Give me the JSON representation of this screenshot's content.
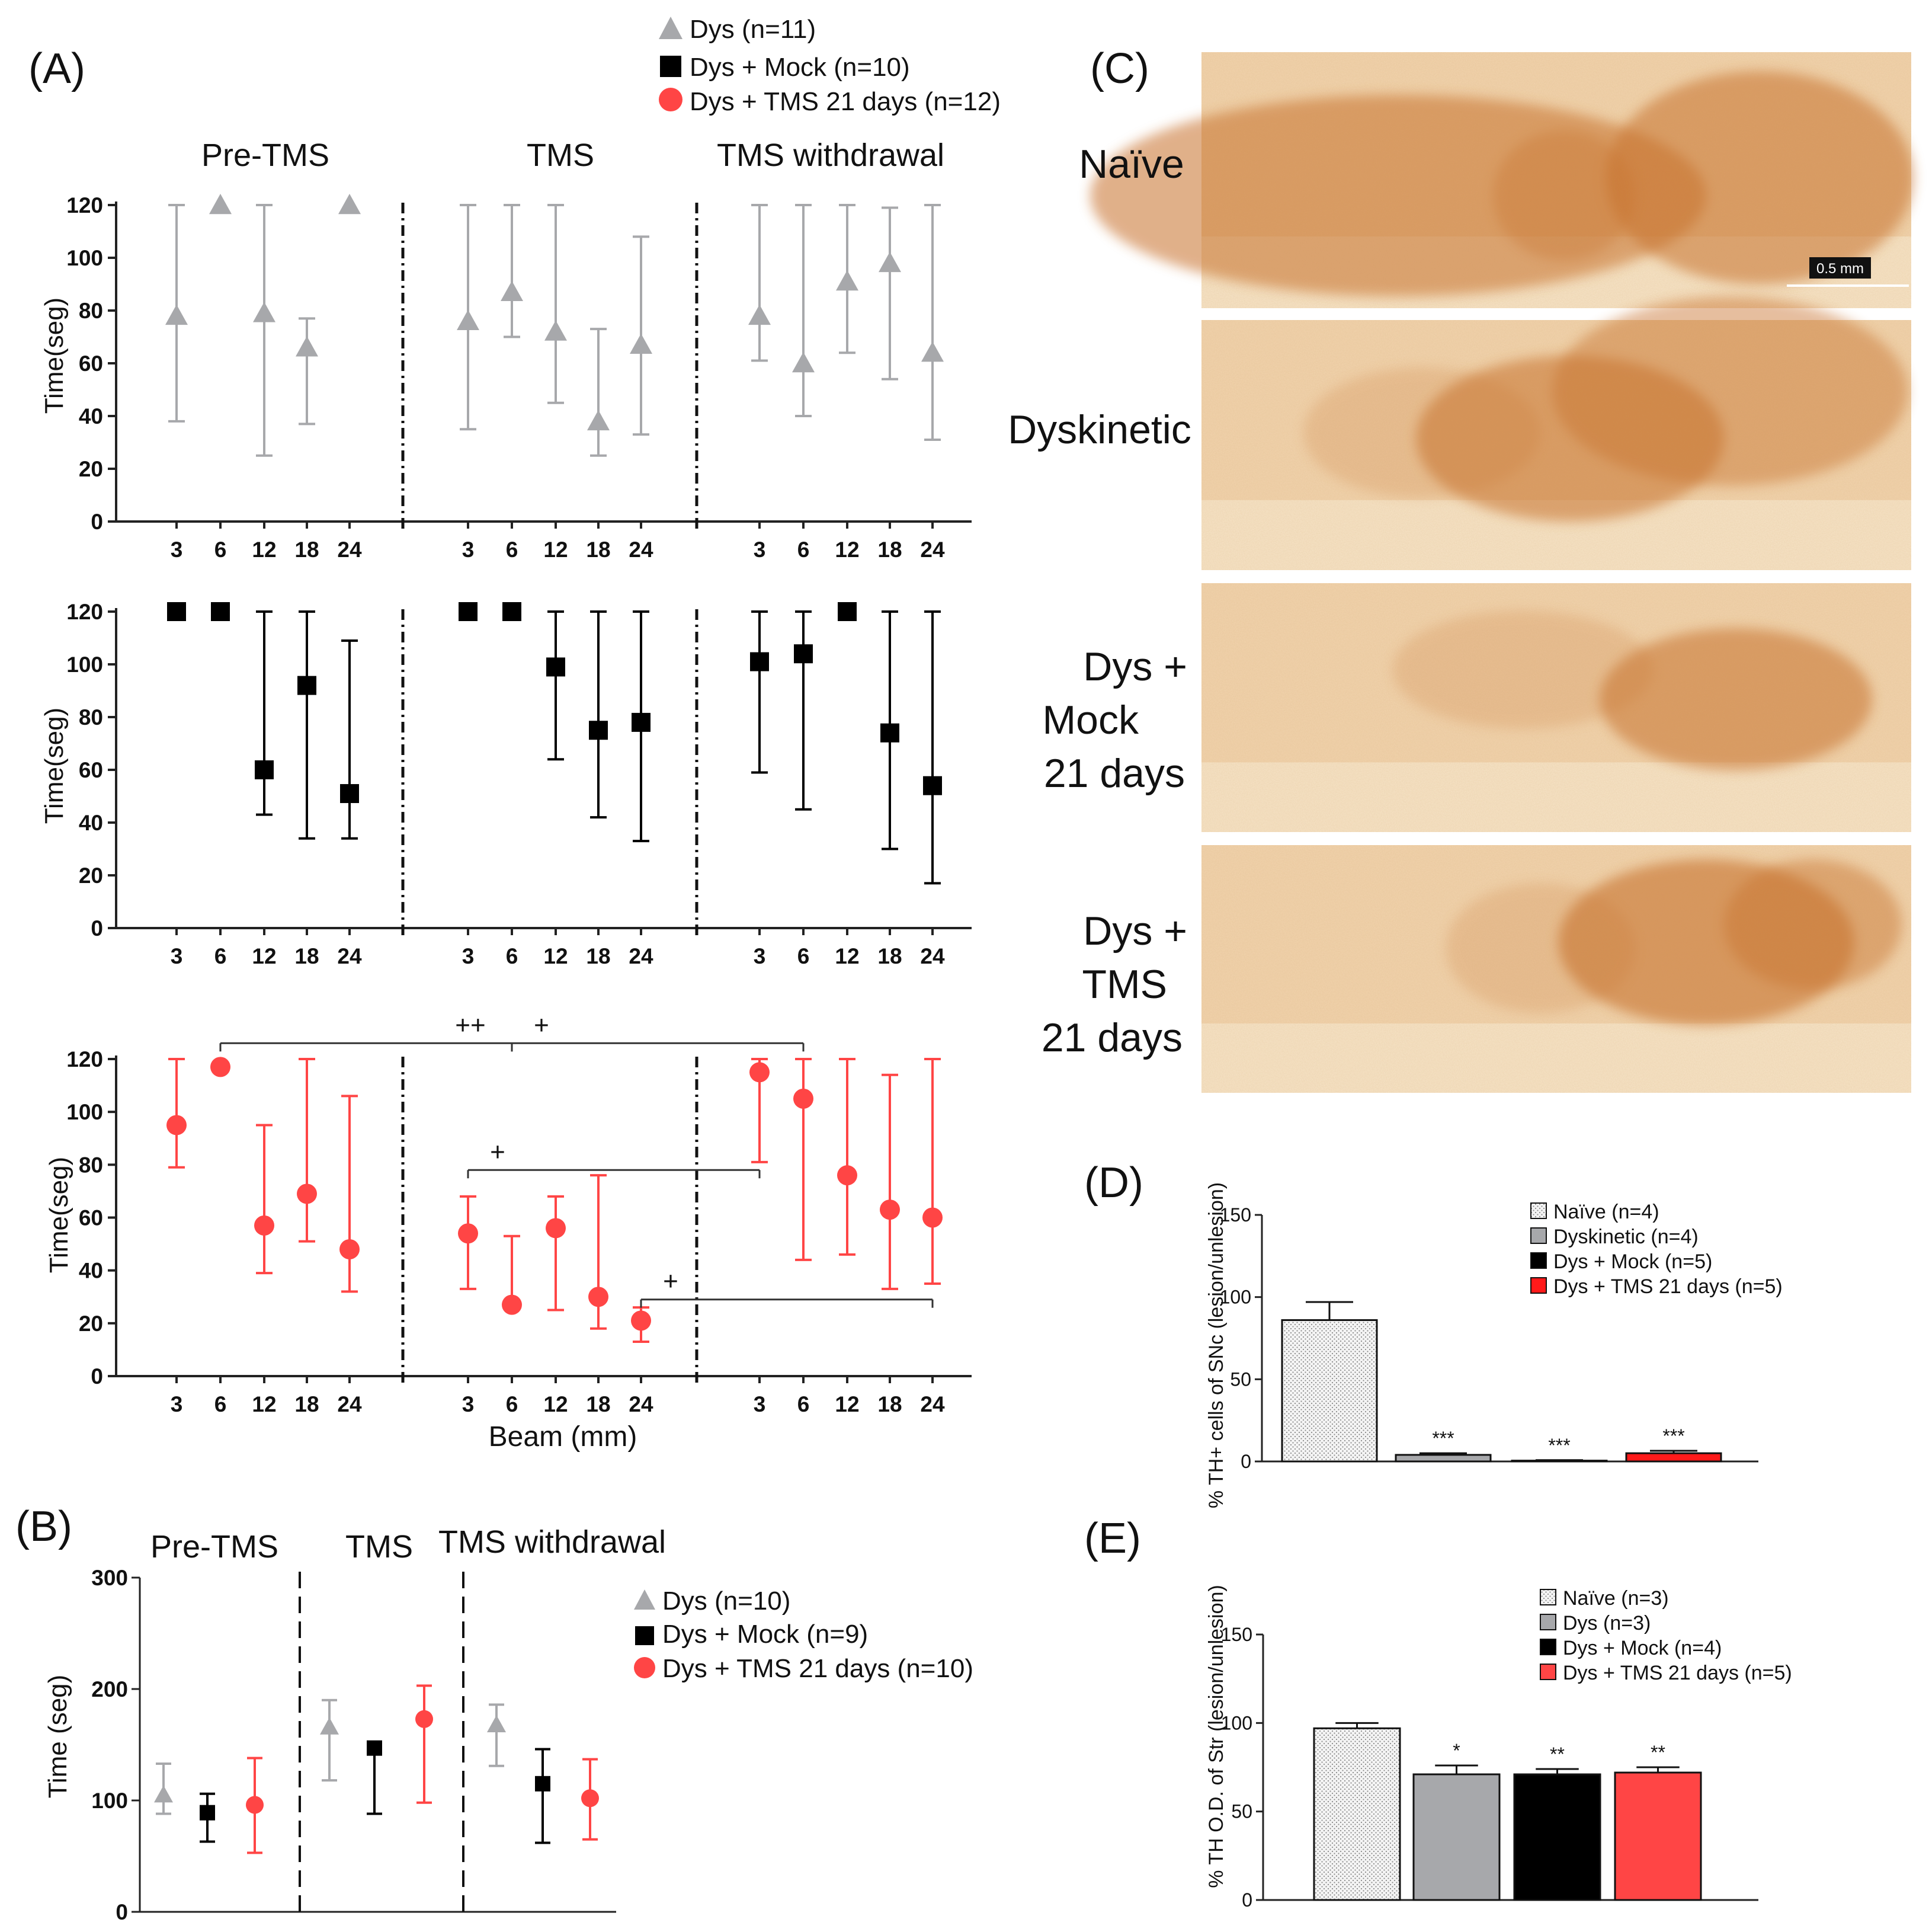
{
  "panels": {
    "A": "(A)",
    "B": "(B)",
    "C": "(C)",
    "D": "(D)",
    "E": "(E)"
  },
  "colors": {
    "gray": "#a7a8ab",
    "black": "#000000",
    "red": "#ff4545",
    "tissue_bg": "#f2d6b4",
    "tissue_stain": "#c8702c"
  },
  "panel_a": {
    "legend": [
      "Dys (n=11)",
      "Dys + Mock (n=10)",
      "Dys + TMS 21 days (n=12)"
    ],
    "headers": [
      "Pre-TMS",
      "TMS",
      "TMS withdrawal"
    ],
    "xlabel": "Beam (mm)"
  },
  "panel_b": {
    "legend": [
      "Dys (n=10)",
      "Dys + Mock (n=9)",
      "Dys + TMS 21 days (n=10)"
    ]
  },
  "panel_c": {
    "rows": [
      [
        "Naïve"
      ],
      [
        "Dyskinetic"
      ],
      [
        "Dys +",
        "Mock",
        "21 days"
      ],
      [
        "Dys +",
        "TMS",
        "21 days"
      ]
    ],
    "scale_bar": "0.5 mm"
  },
  "chart_data": [
    {
      "id": "A1",
      "type": "scatter",
      "panel": "A",
      "series_name": "Dys (n=11)",
      "marker": "triangle",
      "color": "#a7a8ab",
      "ylabel": "Time(seg)",
      "xlabel": "",
      "ylim": [
        0,
        120
      ],
      "yticks": [
        0,
        20,
        40,
        60,
        80,
        100,
        120
      ],
      "groups": [
        "Pre-TMS",
        "TMS",
        "TMS withdrawal"
      ],
      "categories": [
        "3",
        "6",
        "12",
        "18",
        "24"
      ],
      "values": [
        [
          78,
          120,
          79,
          66,
          120
        ],
        [
          76,
          87,
          72,
          38,
          67
        ],
        [
          78,
          60,
          91,
          98,
          64
        ]
      ],
      "err_low": [
        [
          38,
          120,
          25,
          37,
          120
        ],
        [
          35,
          70,
          45,
          25,
          33
        ],
        [
          61,
          40,
          64,
          54,
          31
        ]
      ],
      "err_high": [
        [
          120,
          120,
          120,
          77,
          120
        ],
        [
          120,
          120,
          120,
          73,
          108
        ],
        [
          120,
          120,
          120,
          119,
          120
        ]
      ],
      "annotations": []
    },
    {
      "id": "A2",
      "type": "scatter",
      "panel": "A",
      "series_name": "Dys + Mock (n=10)",
      "marker": "square",
      "color": "#000000",
      "ylabel": "Time(seg)",
      "xlabel": "",
      "ylim": [
        0,
        120
      ],
      "yticks": [
        0,
        20,
        40,
        60,
        80,
        100,
        120
      ],
      "groups": [
        "Pre-TMS",
        "TMS",
        "TMS withdrawal"
      ],
      "categories": [
        "3",
        "6",
        "12",
        "18",
        "24"
      ],
      "values": [
        [
          120,
          120,
          60,
          92,
          51
        ],
        [
          120,
          120,
          99,
          75,
          78
        ],
        [
          101,
          104,
          120,
          74,
          54
        ]
      ],
      "err_low": [
        [
          120,
          120,
          43,
          34,
          34
        ],
        [
          120,
          120,
          64,
          42,
          33
        ],
        [
          59,
          45,
          120,
          30,
          17
        ]
      ],
      "err_high": [
        [
          120,
          120,
          120,
          120,
          109
        ],
        [
          120,
          120,
          120,
          120,
          120
        ],
        [
          120,
          120,
          120,
          120,
          120
        ]
      ],
      "annotations": []
    },
    {
      "id": "A3",
      "type": "scatter",
      "panel": "A",
      "series_name": "Dys + TMS 21 days (n=12)",
      "marker": "circle",
      "color": "#ff4545",
      "ylabel": "Time(seg)",
      "xlabel": "Beam (mm)",
      "ylim": [
        0,
        120
      ],
      "yticks": [
        0,
        20,
        40,
        60,
        80,
        100,
        120
      ],
      "groups": [
        "Pre-TMS",
        "TMS",
        "TMS withdrawal"
      ],
      "categories": [
        "3",
        "6",
        "12",
        "18",
        "24"
      ],
      "values": [
        [
          95,
          117,
          57,
          69,
          48
        ],
        [
          54,
          27,
          56,
          30,
          21
        ],
        [
          115,
          105,
          76,
          63,
          60
        ]
      ],
      "err_low": [
        [
          79,
          117,
          39,
          51,
          32
        ],
        [
          33,
          26,
          25,
          18,
          13
        ],
        [
          81,
          44,
          46,
          33,
          35
        ]
      ],
      "err_high": [
        [
          120,
          117,
          95,
          120,
          106
        ],
        [
          68,
          53,
          68,
          76,
          26
        ],
        [
          120,
          120,
          120,
          114,
          120
        ]
      ],
      "annotations": [
        {
          "label": "++",
          "from": [
            0,
            1
          ],
          "to": [
            1,
            1
          ],
          "y": 126
        },
        {
          "label": "+",
          "from": [
            1,
            1
          ],
          "to": [
            2,
            1
          ],
          "y": 126
        },
        {
          "label": "+",
          "from": [
            1,
            0
          ],
          "to": [
            2,
            0
          ],
          "y": 78
        },
        {
          "label": "+",
          "from": [
            1,
            4
          ],
          "to": [
            2,
            4
          ],
          "y": 29
        }
      ]
    },
    {
      "id": "B",
      "type": "scatter",
      "panel": "B",
      "ylabel": "Time (seg)",
      "ylim": [
        0,
        300
      ],
      "yticks": [
        0,
        100,
        200,
        300
      ],
      "groups": [
        "Pre-TMS",
        "TMS",
        "TMS withdrawal"
      ],
      "series": [
        {
          "name": "Dys (n=10)",
          "marker": "triangle",
          "color": "#a7a8ab",
          "values": [
            105,
            166,
            168
          ],
          "err_low": [
            88,
            118,
            131
          ],
          "err_high": [
            133,
            190,
            186
          ]
        },
        {
          "name": "Dys + Mock (n=9)",
          "marker": "square",
          "color": "#000000",
          "values": [
            89,
            147,
            115
          ],
          "err_low": [
            63,
            88,
            62
          ],
          "err_high": [
            106,
            147,
            146
          ]
        },
        {
          "name": "Dys + TMS 21 days (n=10)",
          "marker": "circle",
          "color": "#ff4545",
          "values": [
            96,
            173,
            102
          ],
          "err_low": [
            53,
            98,
            65
          ],
          "err_high": [
            138,
            203,
            137
          ]
        }
      ]
    },
    {
      "id": "D",
      "type": "bar",
      "panel": "D",
      "ylabel": "% TH+ cells of SNc (lesion/unlesion)",
      "ylim": [
        0,
        150
      ],
      "yticks": [
        0,
        50,
        100,
        150
      ],
      "categories": [
        "Naïve (n=4)",
        "Dyskinetic (n=4)",
        "Dys + Mock (n=5)",
        "Dys + TMS 21 days (n=5)"
      ],
      "values": [
        86,
        4,
        0.5,
        5
      ],
      "errors": [
        11,
        1,
        0.3,
        1.5
      ],
      "colors": [
        "#e8e8e8",
        "#a7a8ab",
        "#000000",
        "#ff1a1a"
      ],
      "significance": [
        "",
        "***",
        "***",
        "***"
      ]
    },
    {
      "id": "E",
      "type": "bar",
      "panel": "E",
      "ylabel": "% TH O.D. of Str (lesion/unlesion)",
      "ylim": [
        0,
        150
      ],
      "yticks": [
        0,
        50,
        100,
        150
      ],
      "categories": [
        "Naïve (n=3)",
        "Dys (n=3)",
        "Dys + Mock (n=4)",
        "Dys + TMS 21 days (n=5)"
      ],
      "values": [
        97,
        71,
        71,
        72
      ],
      "errors": [
        3,
        5,
        3,
        3
      ],
      "colors": [
        "#ededed",
        "#a7a8ab",
        "#000000",
        "#ff4545"
      ],
      "significance": [
        "",
        "*",
        "**",
        "**"
      ]
    }
  ]
}
